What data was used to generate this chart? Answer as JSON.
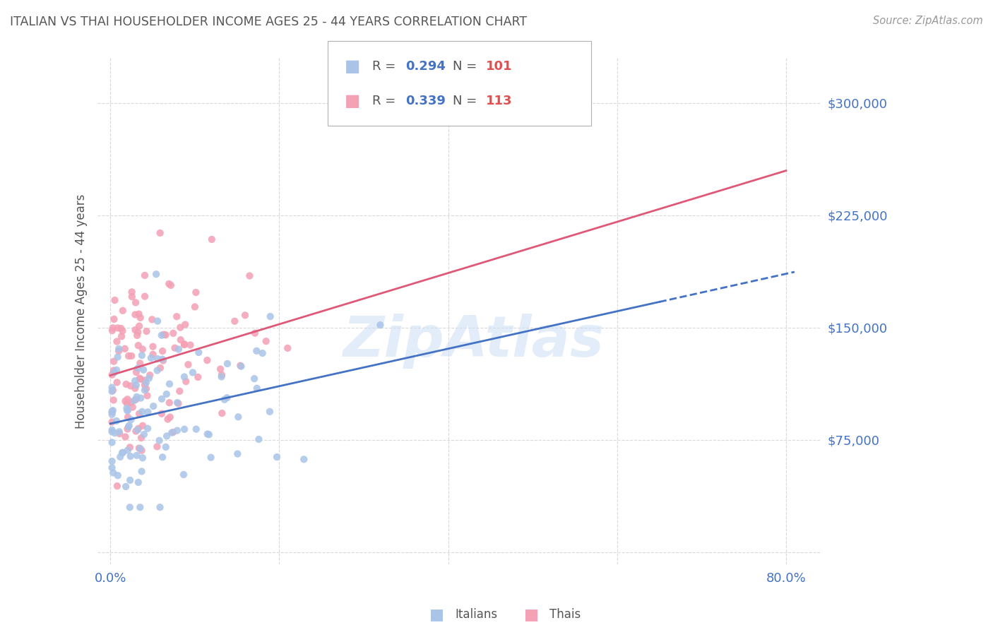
{
  "title": "ITALIAN VS THAI HOUSEHOLDER INCOME AGES 25 - 44 YEARS CORRELATION CHART",
  "source": "Source: ZipAtlas.com",
  "ylabel": "Householder Income Ages 25 - 44 years",
  "ytick_vals": [
    0,
    75000,
    150000,
    225000,
    300000
  ],
  "ytick_labels": [
    "",
    "$75,000",
    "$150,000",
    "$225,000",
    "$300,000"
  ],
  "xtick_vals": [
    0,
    20,
    40,
    60,
    80
  ],
  "xtick_labels": [
    "0.0%",
    "",
    "",
    "",
    "80.0%"
  ],
  "xlim": [
    -1.5,
    84
  ],
  "ylim": [
    -8000,
    330000
  ],
  "watermark": "ZipAtlas",
  "italian_color": "#aac4e8",
  "thai_color": "#f4a0b5",
  "italian_line_color": "#4472c4",
  "thai_line_color": "#e05878",
  "axis_label_color": "#4472c4",
  "title_color": "#555555",
  "source_color": "#999999",
  "grid_color": "#d0d0d0",
  "legend_r_val1": "0.294",
  "legend_n_val1": "101",
  "legend_r_val2": "0.339",
  "legend_n_val2": "113",
  "italian_seed": 12,
  "thai_seed": 7,
  "italian_n": 101,
  "thai_n": 113,
  "italian_intercept": 88000,
  "italian_slope": 850,
  "italian_noise": 28000,
  "italian_x_scale": 0.18,
  "thai_intercept": 118000,
  "thai_slope": 1400,
  "thai_noise": 32000,
  "thai_x_scale": 0.18
}
